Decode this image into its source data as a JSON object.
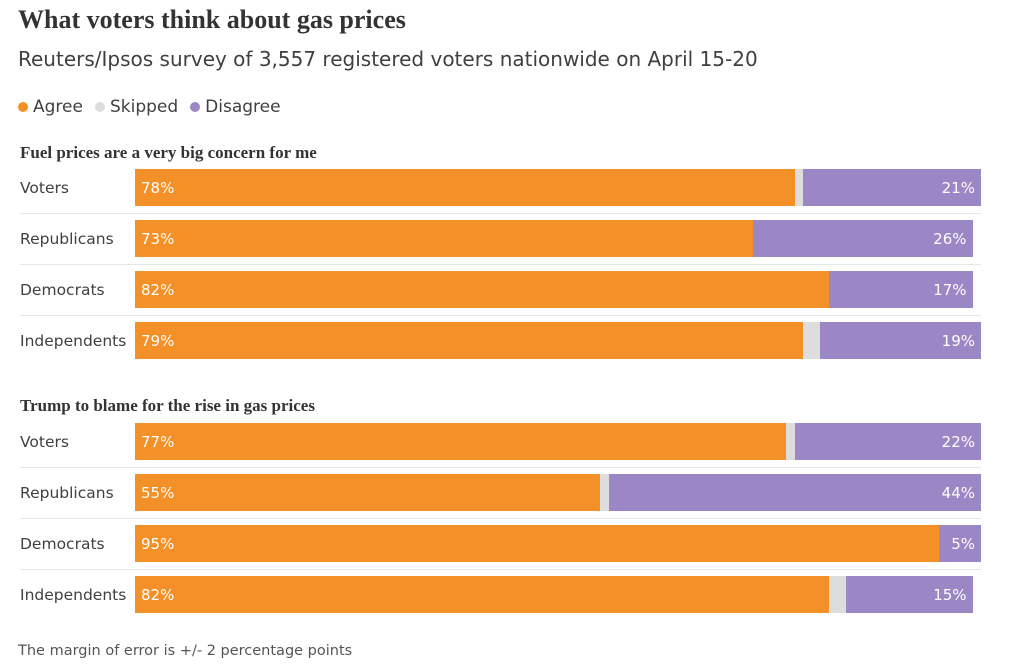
{
  "title": "What voters think about gas prices",
  "subtitle": "Reuters/Ipsos survey of 3,557 registered voters nationwide on April 15-20",
  "footnote": "The margin of error is +/- 2 percentage points",
  "legend": [
    {
      "label": "Agree",
      "color": "#f39128"
    },
    {
      "label": "Skipped",
      "color": "#dddddd"
    },
    {
      "label": "Disagree",
      "color": "#9b87c6"
    }
  ],
  "chart_data": [
    {
      "type": "bar",
      "orientation": "horizontal",
      "stacked": true,
      "title": "Fuel prices are a very big concern for me",
      "categories": [
        "Voters",
        "Republicans",
        "Democrats",
        "Independents"
      ],
      "series": [
        {
          "name": "Agree",
          "values": [
            78,
            73,
            82,
            79
          ],
          "labels": [
            "78%",
            "73%",
            "82%",
            "79%"
          ],
          "color": "#f39128"
        },
        {
          "name": "Skipped",
          "values": [
            1,
            0,
            0,
            2
          ],
          "color": "#dddddd"
        },
        {
          "name": "Disagree",
          "values": [
            21,
            26,
            17,
            19
          ],
          "labels": [
            "21%",
            "26%",
            "17%",
            "19%"
          ],
          "color": "#9b87c6"
        }
      ],
      "xlim": [
        0,
        100
      ],
      "grid": false
    },
    {
      "type": "bar",
      "orientation": "horizontal",
      "stacked": true,
      "title": "Trump to blame for the rise in gas prices",
      "categories": [
        "Voters",
        "Republicans",
        "Democrats",
        "Independents"
      ],
      "series": [
        {
          "name": "Agree",
          "values": [
            77,
            55,
            95,
            82
          ],
          "labels": [
            "77%",
            "55%",
            "95%",
            "82%"
          ],
          "color": "#f39128"
        },
        {
          "name": "Skipped",
          "values": [
            1,
            1,
            0,
            2
          ],
          "color": "#dddddd"
        },
        {
          "name": "Disagree",
          "values": [
            22,
            44,
            5,
            15
          ],
          "labels": [
            "22%",
            "44%",
            "5%",
            "15%"
          ],
          "color": "#9b87c6"
        }
      ],
      "xlim": [
        0,
        100
      ],
      "grid": false
    }
  ]
}
